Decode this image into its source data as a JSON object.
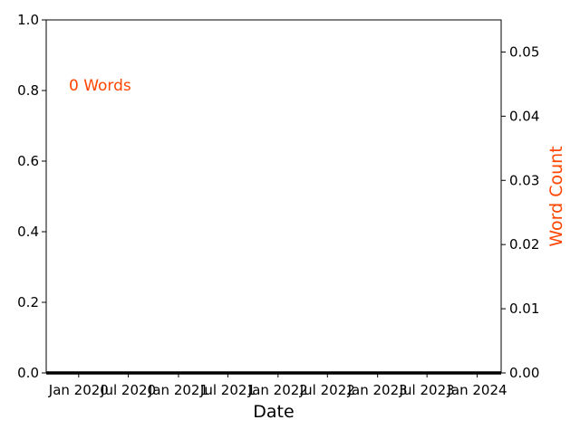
{
  "chart_data": {
    "type": "line",
    "title": "",
    "xlabel": "Date",
    "ylabel_left": "",
    "ylabel_right": "Word Count",
    "annotation": "0 Words",
    "x_ticks": [
      "Jan 2020",
      "Jul 2020",
      "Jan 2021",
      "Jul 2021",
      "Jan 2022",
      "Jul 2022",
      "Jan 2023",
      "Jul 2023",
      "Jan 2024"
    ],
    "y_left_ticks": [
      "0.0",
      "0.2",
      "0.4",
      "0.6",
      "0.8",
      "1.0"
    ],
    "y_right_ticks": [
      "0.00",
      "0.01",
      "0.02",
      "0.03",
      "0.04",
      "0.05"
    ],
    "ylim_left": [
      0,
      1
    ],
    "ylim_right": [
      0,
      0.055
    ],
    "xlim": [
      "2019-09-04",
      "2024-03-29"
    ],
    "grid": false,
    "colors": {
      "accent": "#ff4500",
      "axis": "#000000",
      "series": "#000000"
    },
    "series": [
      {
        "values_constant": 0,
        "x_start": "2019-09-04",
        "x_end": "2024-03-29"
      }
    ]
  }
}
